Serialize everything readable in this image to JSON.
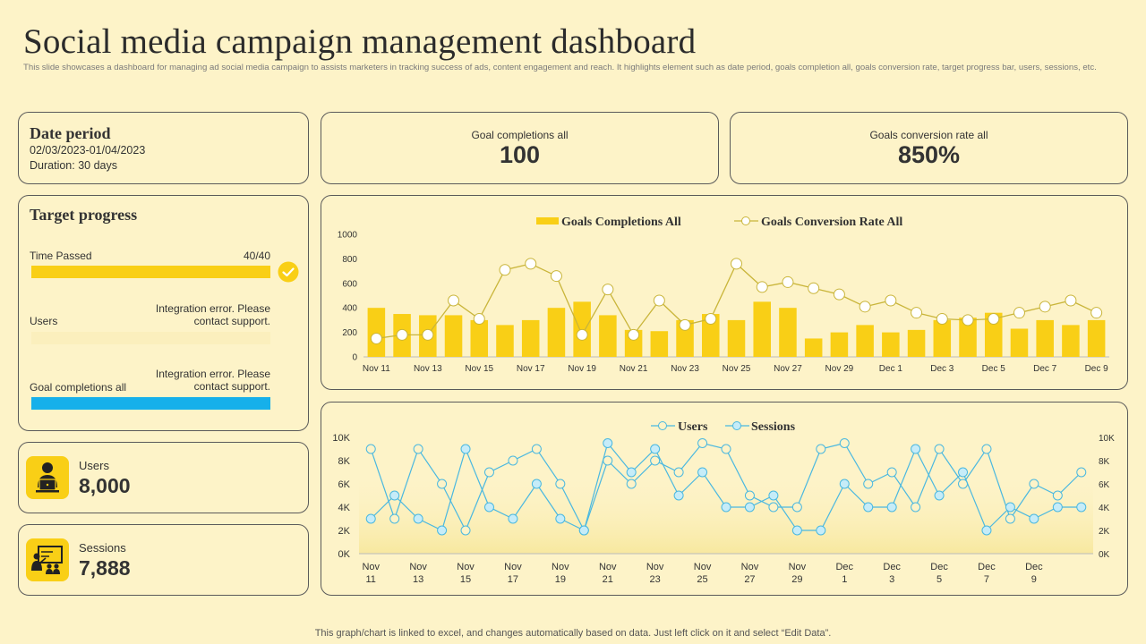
{
  "header": {
    "title": "Social media campaign management dashboard",
    "subtitle": "This slide showcases a dashboard for managing ad social media campaign to assists marketers in tracking success of ads, content engagement and reach. It highlights element such as date period, goals completion all, goals conversion rate, target progress bar, users, sessions, etc."
  },
  "date_period": {
    "heading": "Date period",
    "range": "02/03/2023-01/04/2023",
    "duration": "Duration: 30 days"
  },
  "kpis": {
    "goal_completions": {
      "label": "Goal completions all",
      "value": "100"
    },
    "conversion_rate": {
      "label": "Goals conversion rate all",
      "value": "850%"
    }
  },
  "target_progress": {
    "heading": "Target progress",
    "time_passed": {
      "label": "Time Passed",
      "value": "40/40",
      "fraction": 1.0
    },
    "users": {
      "label": "Users",
      "error": "Integration error. Please contact support."
    },
    "goal_completions": {
      "label": "Goal completions all",
      "error": "Integration error. Please contact support.",
      "fraction": 1.0
    }
  },
  "users_card": {
    "label": "Users",
    "value": "8,000"
  },
  "sessions_card": {
    "label": "Sessions",
    "value": "7,888"
  },
  "footer": "This graph/chart is linked to excel, and changes automatically based on data. Just left click on it and select “Edit Data”.",
  "colors": {
    "accent_yellow": "#f9cf16",
    "line_olive": "#c9b53a",
    "line_blue": "#4ab8e0",
    "bar_blue": "#16b0ea"
  },
  "chart_data": [
    {
      "type": "bar",
      "title": "",
      "legend": [
        "Goals Completions All",
        "Goals Conversion Rate All"
      ],
      "categories": [
        "Nov 11",
        "Nov 12",
        "Nov 13",
        "Nov 14",
        "Nov 15",
        "Nov 16",
        "Nov 17",
        "Nov 18",
        "Nov 19",
        "Nov 20",
        "Nov 21",
        "Nov 22",
        "Nov 23",
        "Nov 24",
        "Nov 25",
        "Nov 26",
        "Nov 27",
        "Nov 28",
        "Nov 29",
        "Nov 30",
        "Dec 1",
        "Dec 2",
        "Dec 3",
        "Dec 4",
        "Dec 5",
        "Dec 6",
        "Dec 7",
        "Dec 8",
        "Dec 9"
      ],
      "tick_labels": [
        "Nov 11",
        "Nov 13",
        "Nov 15",
        "Nov 17",
        "Nov 19",
        "Nov 21",
        "Nov 23",
        "Nov 25",
        "Nov 27",
        "Nov 29",
        "Dec 1",
        "Dec 3",
        "Dec 5",
        "Dec 7",
        "Dec 9"
      ],
      "series": [
        {
          "name": "Goals Completions All",
          "kind": "bar",
          "values": [
            400,
            350,
            340,
            340,
            300,
            260,
            300,
            400,
            450,
            340,
            220,
            210,
            300,
            350,
            300,
            450,
            400,
            150,
            200,
            260,
            200,
            220,
            300,
            320,
            360,
            230,
            300,
            260,
            300
          ]
        },
        {
          "name": "Goals Conversion Rate All",
          "kind": "line",
          "values": [
            150,
            180,
            180,
            460,
            310,
            710,
            760,
            660,
            180,
            550,
            180,
            460,
            260,
            310,
            760,
            570,
            610,
            560,
            510,
            410,
            460,
            360,
            310,
            300,
            310,
            360,
            410,
            460,
            360
          ]
        }
      ],
      "yticks": [
        0,
        200,
        400,
        600,
        800,
        1000
      ],
      "ylim": [
        0,
        1000
      ],
      "xlabel": "",
      "ylabel": "",
      "grid": false,
      "legend_position": "top-center"
    },
    {
      "type": "line",
      "title": "",
      "legend": [
        "Users",
        "Sessions"
      ],
      "categories": [
        "Nov 11",
        "Nov 12",
        "Nov 13",
        "Nov 14",
        "Nov 15",
        "Nov 16",
        "Nov 17",
        "Nov 18",
        "Nov 19",
        "Nov 20",
        "Nov 21",
        "Nov 22",
        "Nov 23",
        "Nov 24",
        "Nov 25",
        "Nov 26",
        "Nov 27",
        "Nov 28",
        "Nov 29",
        "Nov 30",
        "Dec 1",
        "Dec 2",
        "Dec 3",
        "Dec 4",
        "Dec 5",
        "Dec 6",
        "Dec 7",
        "Dec 8",
        "Dec 9",
        "Dec 10",
        "Dec 11"
      ],
      "tick_labels": [
        [
          "Nov",
          "11"
        ],
        [
          "Nov",
          "13"
        ],
        [
          "Nov",
          "15"
        ],
        [
          "Nov",
          "17"
        ],
        [
          "Nov",
          "19"
        ],
        [
          "Nov",
          "21"
        ],
        [
          "Nov",
          "23"
        ],
        [
          "Nov",
          "25"
        ],
        [
          "Nov",
          "27"
        ],
        [
          "Nov",
          "29"
        ],
        [
          "Dec",
          "1"
        ],
        [
          "Dec",
          "3"
        ],
        [
          "Dec",
          "5"
        ],
        [
          "Dec",
          "7"
        ],
        [
          "Dec",
          "9"
        ]
      ],
      "series": [
        {
          "name": "Users",
          "values": [
            9000,
            3000,
            9000,
            6000,
            2000,
            7000,
            8000,
            9000,
            6000,
            2000,
            8000,
            6000,
            8000,
            7000,
            9500,
            9000,
            5000,
            4000,
            4000,
            9000,
            9500,
            6000,
            7000,
            4000,
            9000,
            6000,
            9000,
            3000,
            6000,
            5000,
            7000
          ]
        },
        {
          "name": "Sessions",
          "values": [
            3000,
            5000,
            3000,
            2000,
            9000,
            4000,
            3000,
            6000,
            3000,
            2000,
            9500,
            7000,
            9000,
            5000,
            7000,
            4000,
            4000,
            5000,
            2000,
            2000,
            6000,
            4000,
            4000,
            9000,
            5000,
            7000,
            2000,
            4000,
            3000,
            4000,
            4000
          ]
        }
      ],
      "yticks": [
        "0K",
        "2K",
        "4K",
        "6K",
        "8K",
        "10K"
      ],
      "ylim": [
        0,
        10000
      ],
      "xlabel": "",
      "ylabel": "",
      "grid": false,
      "legend_position": "top-center"
    }
  ]
}
